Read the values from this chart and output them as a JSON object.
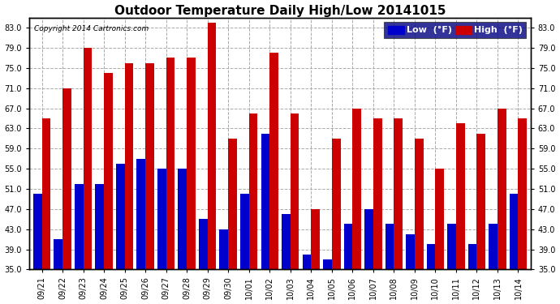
{
  "title": "Outdoor Temperature Daily High/Low 20141015",
  "copyright": "Copyright 2014 Cartronics.com",
  "legend_low": "Low  (°F)",
  "legend_high": "High  (°F)",
  "dates": [
    "09/21",
    "09/22",
    "09/23",
    "09/24",
    "09/25",
    "09/26",
    "09/27",
    "09/28",
    "09/29",
    "09/30",
    "10/01",
    "10/02",
    "10/03",
    "10/04",
    "10/05",
    "10/06",
    "10/07",
    "10/08",
    "10/09",
    "10/10",
    "10/11",
    "10/12",
    "10/13",
    "10/14"
  ],
  "highs": [
    65,
    71,
    79,
    74,
    76,
    76,
    77,
    77,
    84,
    61,
    66,
    78,
    66,
    47,
    61,
    67,
    65,
    65,
    61,
    55,
    64,
    62,
    67,
    65
  ],
  "lows": [
    50,
    41,
    52,
    52,
    56,
    57,
    55,
    55,
    45,
    43,
    50,
    62,
    46,
    38,
    37,
    44,
    47,
    44,
    42,
    40,
    44,
    40,
    44,
    50
  ],
  "ylim_min": 35.0,
  "ylim_max": 85.0,
  "yticks": [
    35.0,
    39.0,
    43.0,
    47.0,
    51.0,
    55.0,
    59.0,
    63.0,
    67.0,
    71.0,
    75.0,
    79.0,
    83.0
  ],
  "bg_color": "#ffffff",
  "grid_color": "#aaaaaa",
  "bar_width": 0.42,
  "low_color": "#0000cc",
  "high_color": "#cc0000",
  "title_fontsize": 11,
  "tick_fontsize": 7,
  "legend_fontsize": 8
}
